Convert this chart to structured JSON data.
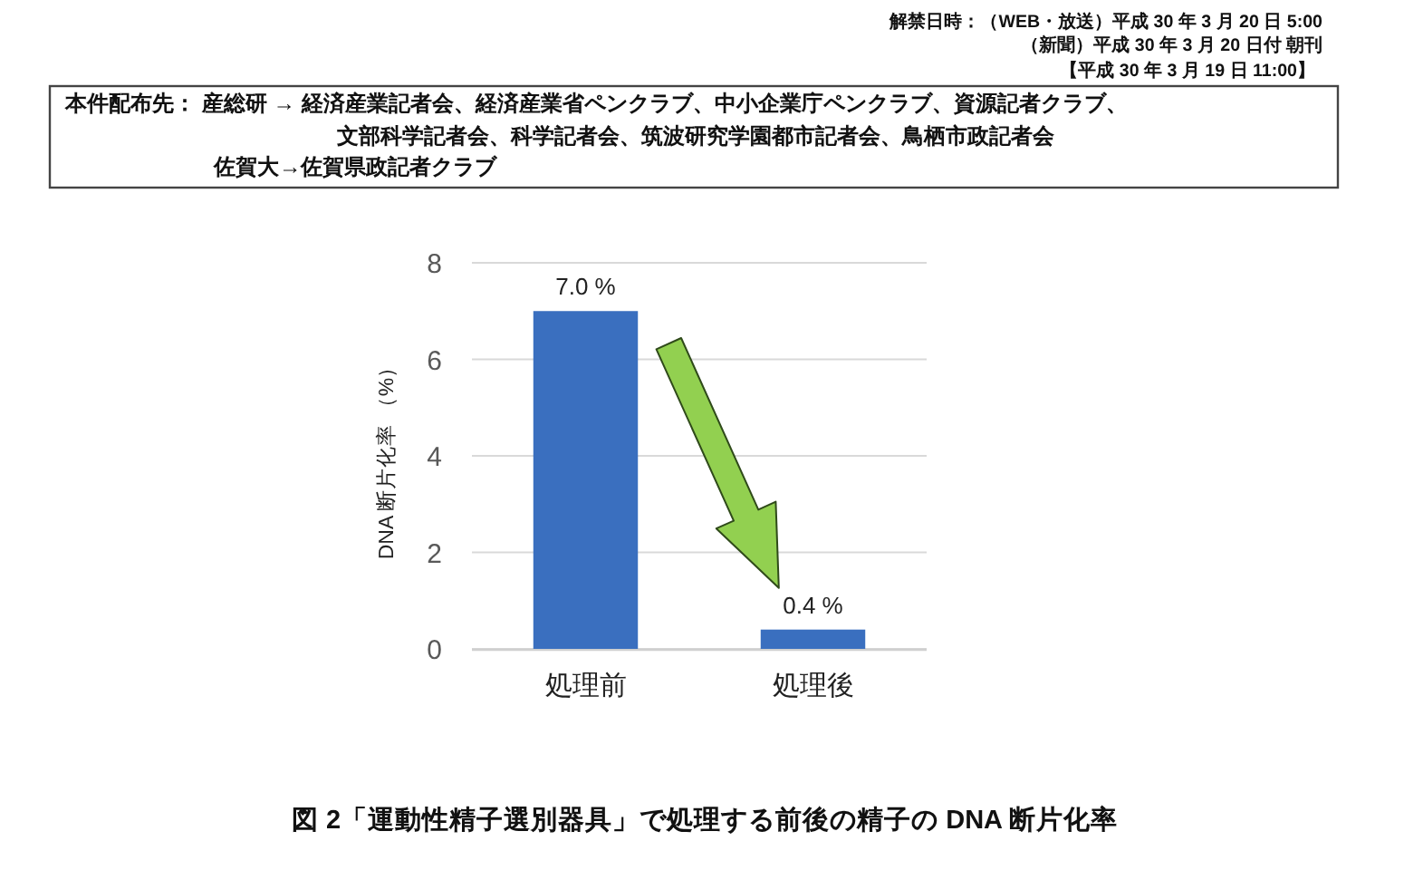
{
  "chart_data": {
    "type": "bar",
    "categories": [
      "処理前",
      "処理後"
    ],
    "values": [
      7.0,
      0.4
    ],
    "value_labels": [
      "7.0 %",
      "0.4 %"
    ],
    "color": "#3a6fbf",
    "ylabel": "DNA 断片化率 （%）",
    "ylim": [
      0,
      8
    ],
    "yticks": [
      0,
      2,
      4,
      6,
      8
    ],
    "grid": "y",
    "annotations": [
      "解禁日時：（WEB・放送）平成 30 年 3 月 20 日 5:00",
      "（新聞）平成 30 年 3 月 20 日付 朝刊",
      "【平成 30 年 3 月 19 日 11:00】",
      "本件配布先：  産総研 → 経済産業記者会、経済産業省ペンクラブ、中小企業庁ペンクラブ、資源記者クラブ、",
      "文部科学記者会、科学記者会、筑波研究学園都市記者会、鳥栖市政記者会",
      "佐賀大→佐賀県政記者クラブ",
      "図 2「運動性精子選別器具」で処理する前後の精子の DNA 断片化率"
    ]
  }
}
